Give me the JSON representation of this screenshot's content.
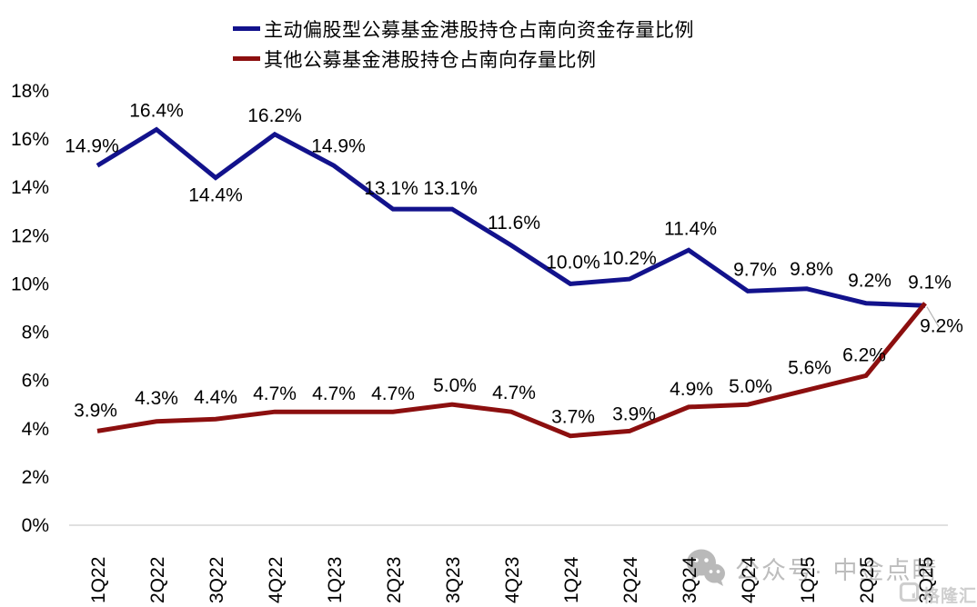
{
  "chart_data": {
    "type": "line",
    "categories": [
      "1Q22",
      "2Q22",
      "3Q22",
      "4Q22",
      "1Q23",
      "2Q23",
      "3Q23",
      "4Q23",
      "1Q24",
      "2Q24",
      "3Q24",
      "4Q24",
      "1Q25",
      "2Q25",
      "3Q25"
    ],
    "series": [
      {
        "name": "主动偏股型公募基金港股持仓占南向资金存量比例",
        "color": "#12128C",
        "values": [
          14.9,
          16.4,
          14.4,
          16.2,
          14.9,
          13.1,
          13.1,
          11.6,
          10.0,
          10.2,
          11.4,
          9.7,
          9.8,
          9.2,
          9.1
        ]
      },
      {
        "name": "其他公募基金港股持仓占南向存量比例",
        "color": "#8C0F0F",
        "values": [
          3.9,
          4.3,
          4.4,
          4.7,
          4.7,
          4.7,
          5.0,
          4.7,
          3.7,
          3.9,
          4.9,
          5.0,
          5.6,
          6.2,
          9.2
        ]
      }
    ],
    "ylim": [
      0,
      18
    ],
    "ytick_labels": [
      "0%",
      "2%",
      "4%",
      "6%",
      "8%",
      "10%",
      "12%",
      "14%",
      "16%",
      "18%"
    ],
    "grid": false,
    "legend_position": "top",
    "data_labels": true,
    "title": "",
    "xlabel": "",
    "ylabel": ""
  },
  "watermark": {
    "text": "公众号· 中金点睛",
    "logo_text": "格隆汇"
  },
  "colors": {
    "axis_line": "#d6d6d6",
    "label_text": "#000000",
    "leader_line": "#b5b5b5",
    "watermark_gray": "#a8a8a8",
    "logo_gray": "#c6c6c6",
    "background": "#ffffff"
  }
}
